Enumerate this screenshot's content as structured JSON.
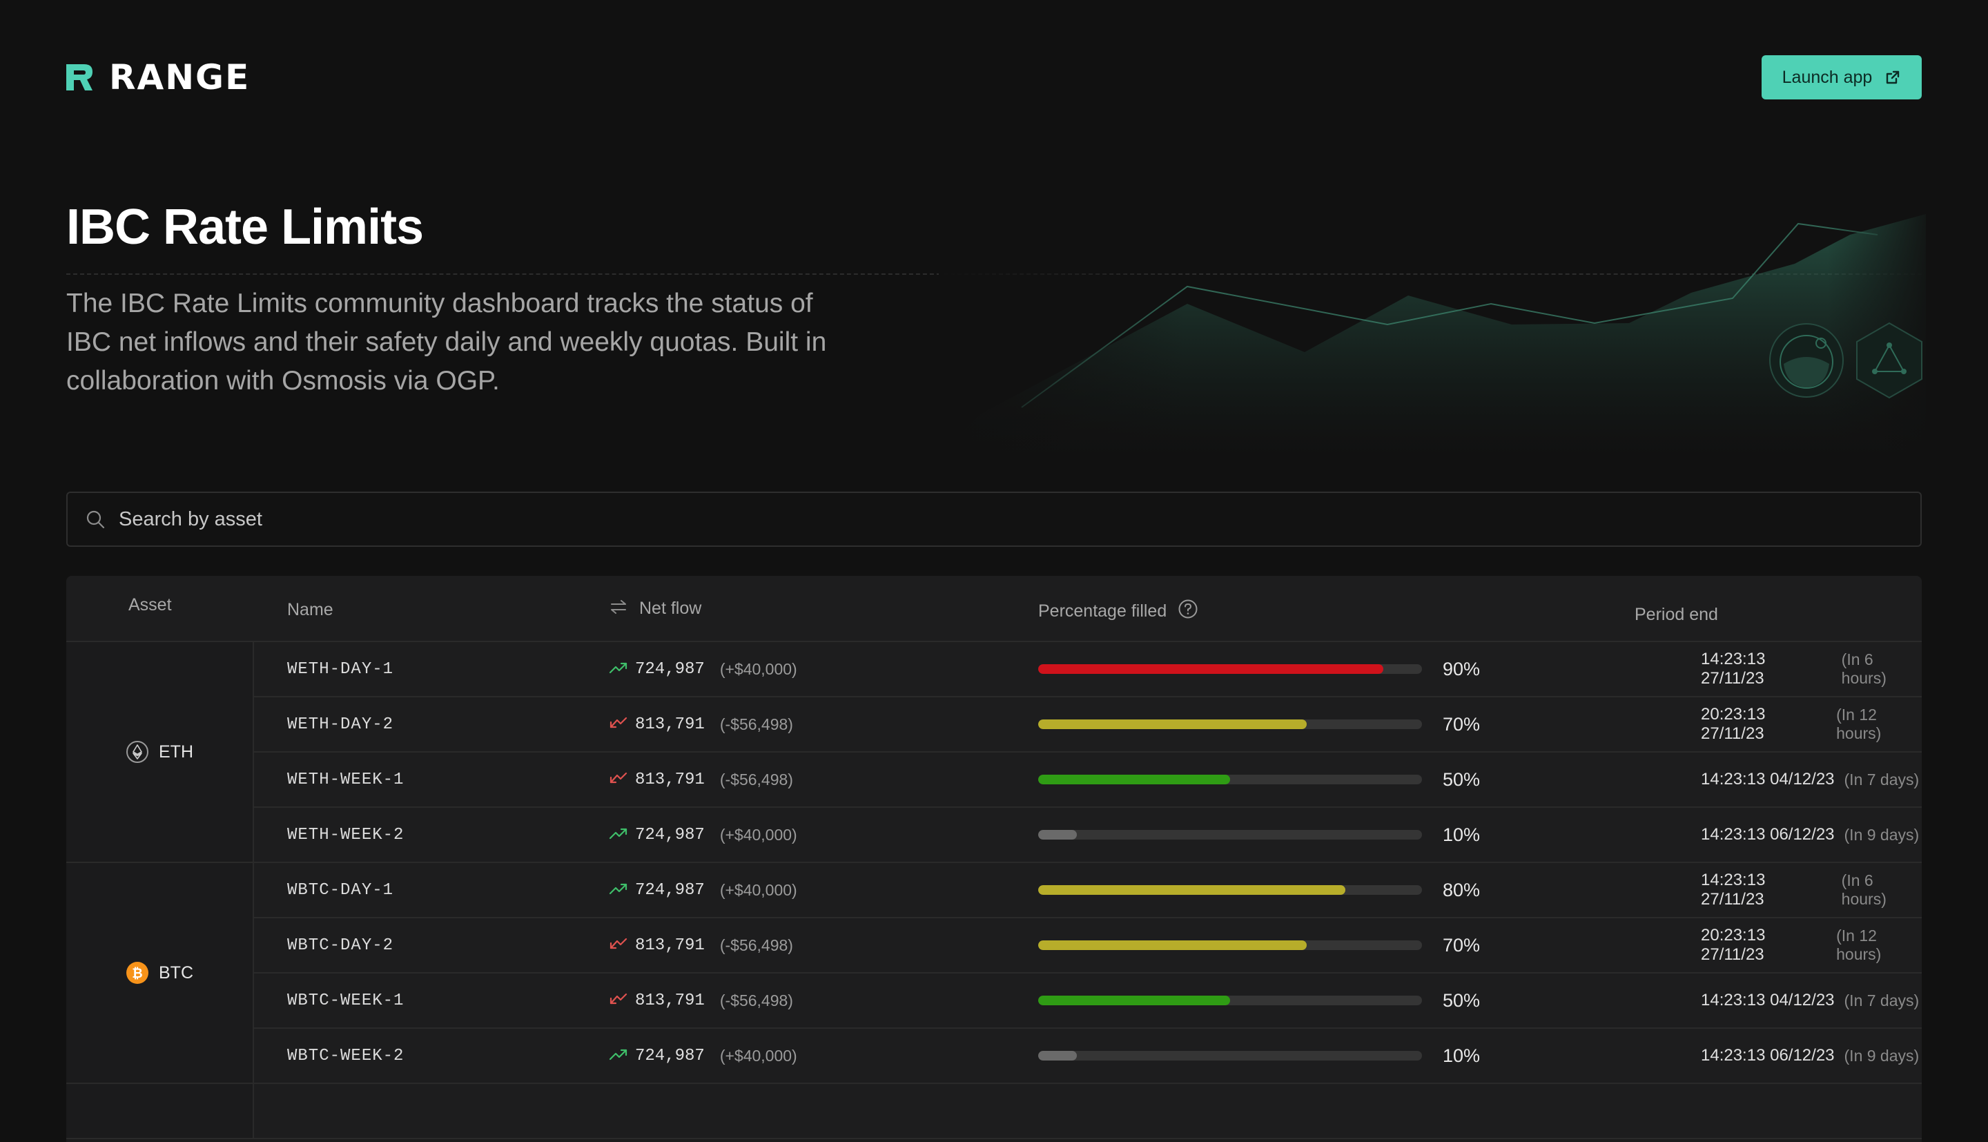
{
  "brand": {
    "name": "RANGE",
    "accent": "#4fd1b5"
  },
  "header": {
    "launch_label": "Launch app",
    "launch_icon": "external-link-icon"
  },
  "hero": {
    "title": "IBC Rate Limits",
    "description": "The IBC Rate Limits community dashboard tracks the status of IBC net inflows and their safety daily and weekly quotas. Built in collaboration with Osmosis via OGP."
  },
  "search": {
    "placeholder": "Search by asset",
    "value": ""
  },
  "table": {
    "columns": {
      "asset": "Asset",
      "name": "Name",
      "net_flow": "Net flow",
      "percentage": "Percentage filled",
      "period": "Period end"
    },
    "groups": [
      {
        "asset": "ETH",
        "icon": "eth-icon",
        "rows": [
          {
            "name": "WETH-DAY-1",
            "trend": "up",
            "net": "724,987",
            "usd": "(+$40,000)",
            "pct": 90,
            "pct_label": "90%",
            "color": "#d0121b",
            "time": "14:23:13 27/11/23",
            "rel": "(In 6 hours)"
          },
          {
            "name": "WETH-DAY-2",
            "trend": "down",
            "net": "813,791",
            "usd": "(-$56,498)",
            "pct": 70,
            "pct_label": "70%",
            "color": "#b7ad2a",
            "time": "20:23:13 27/11/23",
            "rel": "(In 12 hours)"
          },
          {
            "name": "WETH-WEEK-1",
            "trend": "down",
            "net": "813,791",
            "usd": "(-$56,498)",
            "pct": 50,
            "pct_label": "50%",
            "color": "#2f9c14",
            "time": "14:23:13 04/12/23",
            "rel": "(In 7 days)"
          },
          {
            "name": "WETH-WEEK-2",
            "trend": "up",
            "net": "724,987",
            "usd": "(+$40,000)",
            "pct": 10,
            "pct_label": "10%",
            "color": "#6a6a6a",
            "time": "14:23:13 06/12/23",
            "rel": "(In 9 days)"
          }
        ]
      },
      {
        "asset": "BTC",
        "icon": "btc-icon",
        "rows": [
          {
            "name": "WBTC-DAY-1",
            "trend": "up",
            "net": "724,987",
            "usd": "(+$40,000)",
            "pct": 80,
            "pct_label": "80%",
            "color": "#b7ad2a",
            "time": "14:23:13 27/11/23",
            "rel": "(In 6 hours)"
          },
          {
            "name": "WBTC-DAY-2",
            "trend": "down",
            "net": "813,791",
            "usd": "(-$56,498)",
            "pct": 70,
            "pct_label": "70%",
            "color": "#b7ad2a",
            "time": "20:23:13 27/11/23",
            "rel": "(In 12 hours)"
          },
          {
            "name": "WBTC-WEEK-1",
            "trend": "down",
            "net": "813,791",
            "usd": "(-$56,498)",
            "pct": 50,
            "pct_label": "50%",
            "color": "#2f9c14",
            "time": "14:23:13 04/12/23",
            "rel": "(In 7 days)"
          },
          {
            "name": "WBTC-WEEK-2",
            "trend": "up",
            "net": "724,987",
            "usd": "(+$40,000)",
            "pct": 10,
            "pct_label": "10%",
            "color": "#6a6a6a",
            "time": "14:23:13 06/12/23",
            "rel": "(In 9 days)"
          }
        ]
      }
    ]
  },
  "trend_colors": {
    "up": "#3fbf6a",
    "down": "#e0524f"
  }
}
